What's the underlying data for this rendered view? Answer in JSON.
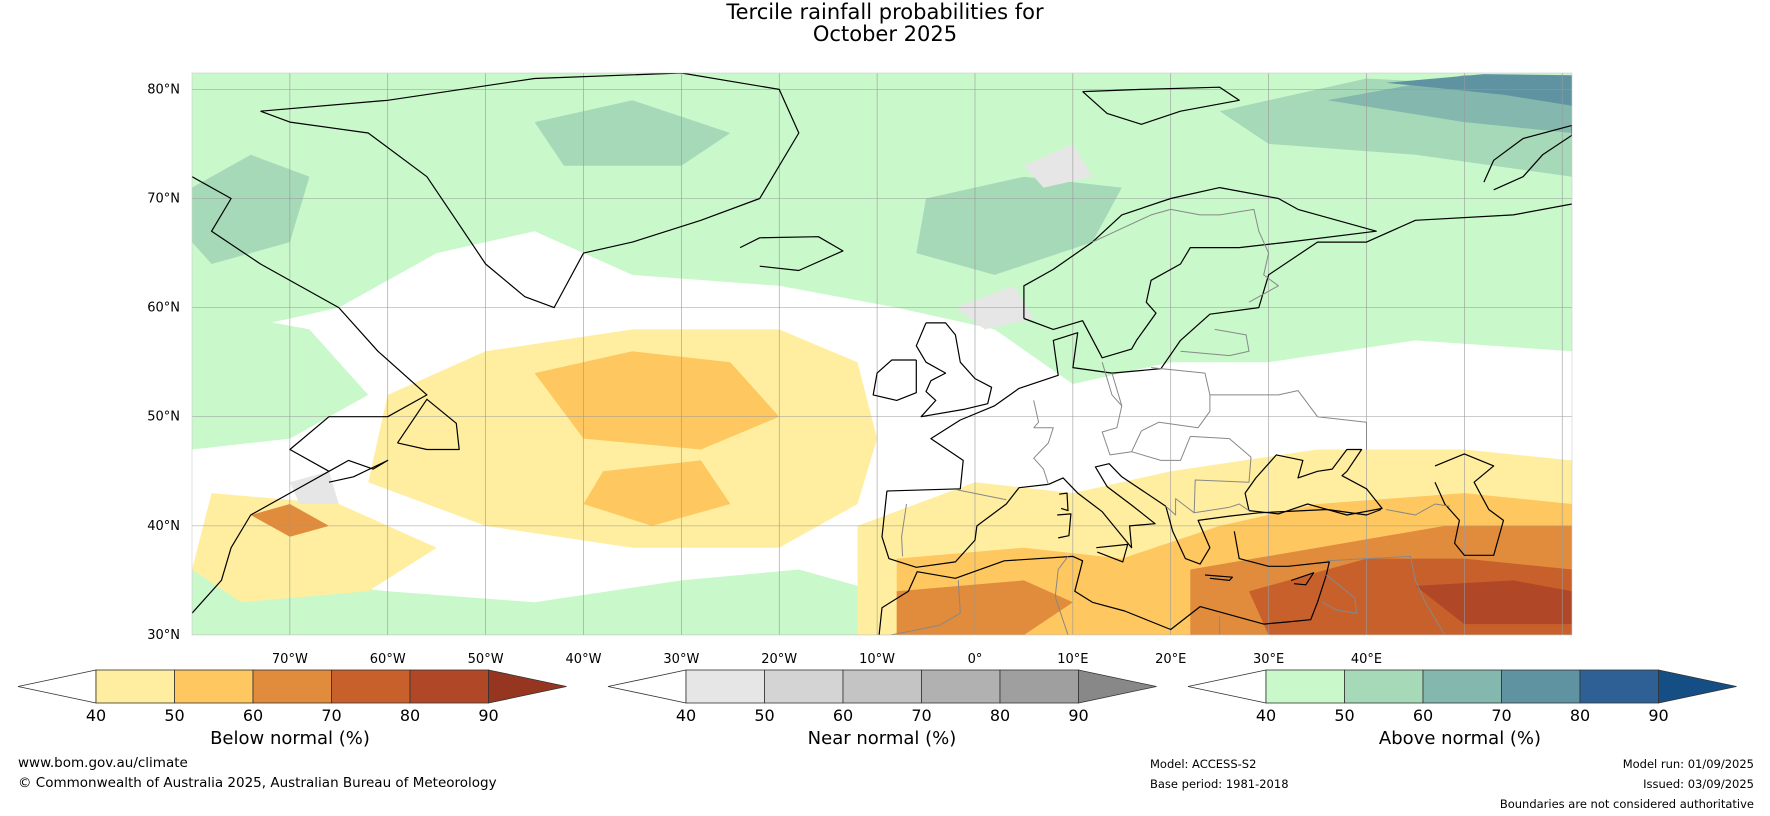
{
  "title": {
    "line1": "Tercile rainfall probabilities for",
    "line2": "October 2025"
  },
  "map": {
    "lat_labels": [
      "80°N",
      "70°N",
      "60°N",
      "50°N",
      "40°N",
      "30°N"
    ],
    "lon_labels": [
      "70°W",
      "60°W",
      "50°W",
      "40°W",
      "30°W",
      "20°W",
      "10°W",
      "0°",
      "10°E",
      "20°E",
      "30°E",
      "40°E"
    ],
    "colors": {
      "below": [
        "#ffeea0",
        "#fec75f",
        "#e08c3c",
        "#c8602c",
        "#b04828",
        "#973620"
      ],
      "near": [
        "#e6e6e6",
        "#d4d4d4",
        "#c4c4c4",
        "#b1b1b1",
        "#9f9f9f",
        "#888888"
      ],
      "above": [
        "#c9f8cb",
        "#a6d9b7",
        "#84b8ae",
        "#5f93a2",
        "#2f6095",
        "#154e85"
      ],
      "coast": "#000000",
      "border": "#888888",
      "grid": "#999999"
    }
  },
  "colorbars": [
    {
      "label": "Below normal (%)",
      "ticks": [
        "40",
        "50",
        "60",
        "70",
        "80",
        "90"
      ]
    },
    {
      "label": "Near normal (%)",
      "ticks": [
        "40",
        "50",
        "60",
        "70",
        "80",
        "90"
      ]
    },
    {
      "label": "Above normal (%)",
      "ticks": [
        "40",
        "50",
        "60",
        "70",
        "80",
        "90"
      ]
    }
  ],
  "footer": {
    "website": "www.bom.gov.au/climate",
    "copyright": "© Commonwealth of Australia 2025, Australian Bureau of Meteorology",
    "model": "Model: ACCESS-S2",
    "base_period": "Base period: 1981-2018",
    "model_run": "Model run: 01/09/2025",
    "issued": "Issued: 03/09/2025",
    "disclaimer": "Boundaries are not considered authoritative"
  }
}
